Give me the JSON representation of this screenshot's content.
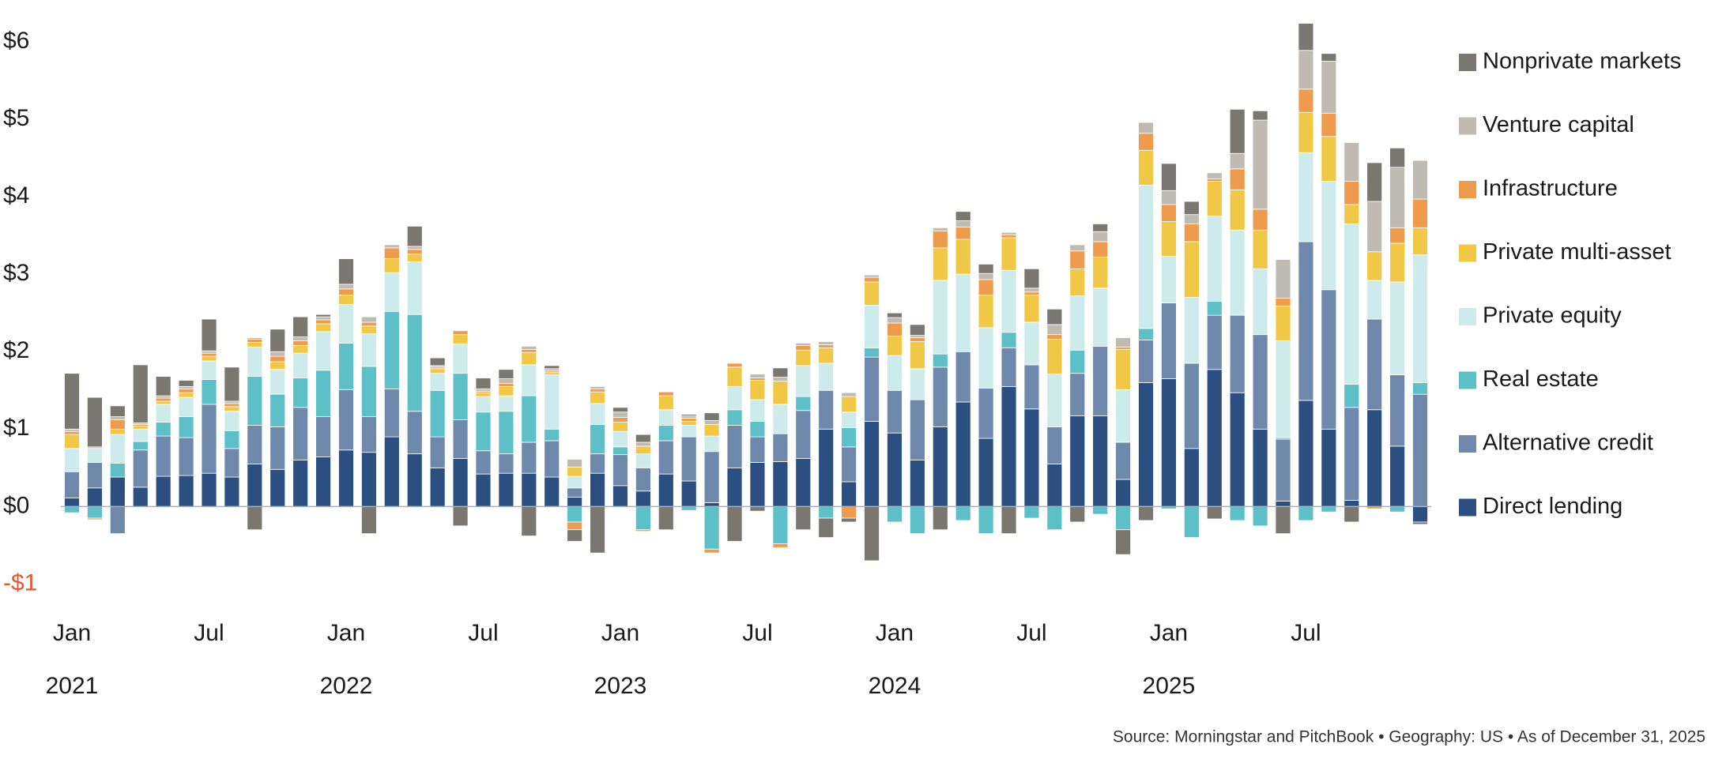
{
  "chart_data": {
    "type": "stacked-bar",
    "source": "Source: Morningstar and PitchBook  •  Geography: US  •  As of December 31, 2025",
    "categories": [
      "Jan",
      null,
      null,
      null,
      null,
      null,
      "Jul",
      null,
      null,
      null,
      null,
      null,
      "Jan",
      null,
      null,
      null,
      null,
      null,
      "Jul",
      null,
      null,
      null,
      null,
      null,
      "Jan",
      null,
      null,
      null,
      null,
      null,
      "Jul",
      null,
      null,
      null,
      null,
      null,
      "Jan",
      null,
      null,
      null,
      null,
      null,
      "Jul",
      null,
      null,
      null,
      null,
      null,
      "Jan",
      null,
      null,
      null,
      null,
      null,
      "Jul",
      null,
      null,
      null,
      null,
      null
    ],
    "years": [
      "2021",
      "2022",
      "2023",
      "2024",
      "2025"
    ],
    "ylim": [
      -1.2,
      6.5
    ],
    "yticks": [
      {
        "value": -1,
        "label": "-$1"
      },
      {
        "value": 0,
        "label": "$0"
      },
      {
        "value": 1,
        "label": "$1"
      },
      {
        "value": 2,
        "label": "$2"
      },
      {
        "value": 3,
        "label": "$3"
      },
      {
        "value": 4,
        "label": "$4"
      },
      {
        "value": 5,
        "label": "$5"
      },
      {
        "value": 6,
        "label": "$6"
      }
    ],
    "negative_label_color": "#e4572e",
    "series": [
      {
        "name": "Direct lending",
        "color": "#2b4f80",
        "values": [
          0.11,
          0.24,
          0.38,
          0.25,
          0.39,
          0.4,
          0.43,
          0.38,
          0.55,
          0.48,
          0.6,
          0.64,
          0.73,
          0.7,
          0.9,
          0.68,
          0.5,
          0.62,
          0.42,
          0.43,
          0.43,
          0.38,
          0.12,
          0.43,
          0.27,
          0.2,
          0.42,
          0.33,
          0.05,
          0.5,
          0.57,
          0.58,
          0.62,
          1.0,
          0.32,
          1.1,
          0.95,
          0.6,
          1.03,
          1.35,
          0.88,
          1.55,
          1.26,
          0.55,
          1.17,
          1.17,
          0.35,
          1.6,
          1.65,
          0.75,
          1.77,
          1.47,
          1.0,
          0.07,
          1.37,
          1.0,
          0.08,
          1.25,
          0.78,
          -0.2
        ]
      },
      {
        "name": "Alternative credit",
        "color": "#6e89ab",
        "values": [
          0.34,
          0.33,
          -0.35,
          0.48,
          0.52,
          0.49,
          0.89,
          0.37,
          0.5,
          0.55,
          0.68,
          0.52,
          0.78,
          0.46,
          0.62,
          0.55,
          0.4,
          0.5,
          0.3,
          0.25,
          0.4,
          0.47,
          0.12,
          0.25,
          0.4,
          0.3,
          0.43,
          0.57,
          0.66,
          0.55,
          0.33,
          0.36,
          0.62,
          0.5,
          0.45,
          0.83,
          0.55,
          0.78,
          0.77,
          0.65,
          0.65,
          0.5,
          0.57,
          0.48,
          0.55,
          0.9,
          0.48,
          0.55,
          0.98,
          1.1,
          0.7,
          1.0,
          1.22,
          0.8,
          2.05,
          1.8,
          1.2,
          1.17,
          0.92,
          1.45
        ]
      },
      {
        "name": "Real estate",
        "color": "#5dbfc8",
        "values": [
          -0.08,
          -0.15,
          0.18,
          0.11,
          0.18,
          0.27,
          0.32,
          0.23,
          0.63,
          0.42,
          0.38,
          0.6,
          0.6,
          0.65,
          1.0,
          1.25,
          0.6,
          0.6,
          0.5,
          0.55,
          0.6,
          0.15,
          -0.2,
          0.38,
          0.1,
          -0.3,
          0.2,
          -0.05,
          -0.55,
          0.2,
          0.2,
          -0.48,
          0.18,
          -0.15,
          0.25,
          0.12,
          -0.2,
          -0.35,
          0.17,
          -0.18,
          -0.35,
          0.2,
          -0.15,
          -0.3,
          0.3,
          -0.1,
          -0.3,
          0.15,
          -0.03,
          -0.4,
          0.18,
          -0.18,
          -0.25,
          0.02,
          -0.18,
          -0.07,
          0.3,
          0,
          -0.07,
          0.15
        ]
      },
      {
        "name": "Private equity",
        "color": "#cdebea",
        "values": [
          0.3,
          0.18,
          0.37,
          0.16,
          0.23,
          0.25,
          0.24,
          0.25,
          0.38,
          0.32,
          0.32,
          0.5,
          0.5,
          0.42,
          0.5,
          0.68,
          0.22,
          0.38,
          0.2,
          0.2,
          0.4,
          0.7,
          0.15,
          0.27,
          0.2,
          0.18,
          0.2,
          0.15,
          0.2,
          0.3,
          0.28,
          0.38,
          0.4,
          0.35,
          0.2,
          0.55,
          0.45,
          0.4,
          0.95,
          1.0,
          0.78,
          0.8,
          0.55,
          0.68,
          0.7,
          0.75,
          0.68,
          1.85,
          0.6,
          0.85,
          1.1,
          1.1,
          0.85,
          1.25,
          1.15,
          1.4,
          2.07,
          0.5,
          1.2,
          1.65
        ]
      },
      {
        "name": "Private multi-asset",
        "color": "#f0c846",
        "values": [
          0.18,
          0,
          0.07,
          0.04,
          0.04,
          0.06,
          0.06,
          0.06,
          0.06,
          0.1,
          0.1,
          0.1,
          0.12,
          0.1,
          0.18,
          0.1,
          0.06,
          0.12,
          0.05,
          0.12,
          0.16,
          0.03,
          0.12,
          0.15,
          0.12,
          0.1,
          0.18,
          0.05,
          0.15,
          0.25,
          0.25,
          0.3,
          0.2,
          0.2,
          0.2,
          0.3,
          0.25,
          0.35,
          0.42,
          0.45,
          0.42,
          0.42,
          0.35,
          0.45,
          0.35,
          0.4,
          0.52,
          0.45,
          0.45,
          0.72,
          0.45,
          0.52,
          0.5,
          0.45,
          0.52,
          0.58,
          0.25,
          0.37,
          0.5,
          0.35
        ]
      },
      {
        "name": "Infrastructure",
        "color": "#ee9b4d",
        "values": [
          0.04,
          -0.02,
          0.12,
          0.02,
          0.04,
          0.05,
          0.04,
          0.04,
          0.04,
          0.07,
          0.06,
          0.05,
          0.08,
          0.05,
          0.14,
          0.06,
          0.02,
          0.05,
          0.02,
          0.04,
          0.04,
          0.02,
          -0.1,
          0.04,
          0.06,
          -0.02,
          0.05,
          0.04,
          -0.05,
          0.05,
          0.03,
          -0.05,
          0.06,
          0.04,
          -0.15,
          0.06,
          0.17,
          0.05,
          0.22,
          0.16,
          0.2,
          0.04,
          0.04,
          0.06,
          0.23,
          0.2,
          0.03,
          0.22,
          0.22,
          0.23,
          0.03,
          0.27,
          0.27,
          0.1,
          0.3,
          0.3,
          0.3,
          -0.03,
          0.2,
          0.37
        ]
      },
      {
        "name": "Venture capital",
        "color": "#bfbab2",
        "values": [
          0.03,
          0.02,
          0.04,
          0.02,
          0.03,
          0.03,
          0.03,
          0.03,
          0.02,
          0.06,
          0.05,
          0.04,
          0.06,
          0.07,
          0.04,
          0.04,
          0.02,
          0,
          0.03,
          0.06,
          0.04,
          0.03,
          0.1,
          0.03,
          0.07,
          0.05,
          0,
          0.03,
          0.05,
          0,
          0.05,
          0.05,
          0.03,
          0.04,
          0.05,
          0.03,
          0.07,
          0.03,
          0.04,
          0.08,
          0.08,
          0.03,
          0.05,
          0.13,
          0.08,
          0.13,
          0.12,
          0.14,
          0.18,
          0.12,
          0.08,
          0.2,
          1.15,
          0.5,
          0.5,
          0.67,
          0.5,
          0.65,
          0.78,
          0.5
        ]
      },
      {
        "name": "Nonprivate markets",
        "color": "#7a7670",
        "values": [
          0.72,
          0.64,
          0.14,
          0.75,
          0.25,
          0.08,
          0.41,
          0.44,
          -0.3,
          0.29,
          0.26,
          0.03,
          0.33,
          -0.35,
          0,
          0.26,
          0.1,
          -0.25,
          0.14,
          0.12,
          -0.38,
          0.04,
          -0.15,
          -0.6,
          0.06,
          0.1,
          -0.3,
          0.02,
          0.1,
          -0.45,
          -0.06,
          0.12,
          -0.3,
          -0.25,
          -0.05,
          -0.7,
          0.06,
          0.14,
          -0.3,
          0.12,
          0.12,
          -0.35,
          0.25,
          0.2,
          -0.2,
          0.1,
          -0.32,
          -0.18,
          0.35,
          0.17,
          -0.16,
          0.57,
          0.12,
          -0.35,
          0.35,
          0.1,
          -0.2,
          0.5,
          0.25,
          -0.03
        ]
      }
    ]
  }
}
